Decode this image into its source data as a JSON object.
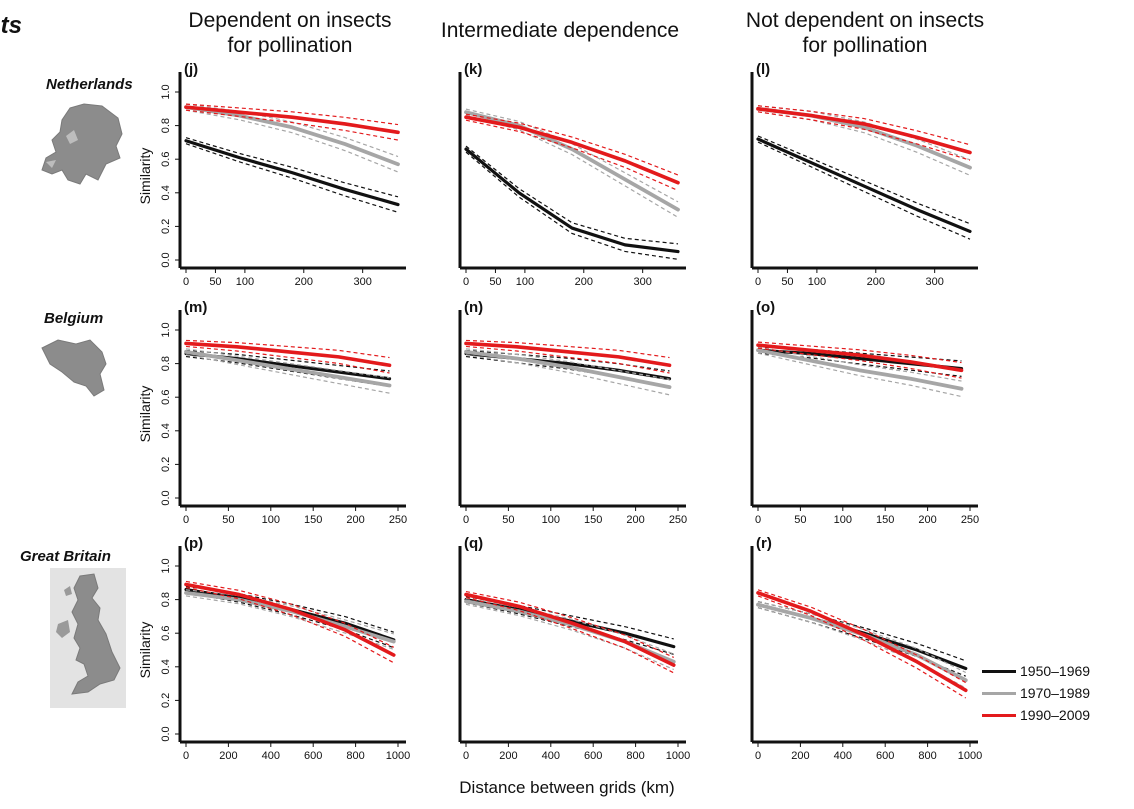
{
  "corner_label": "nts",
  "x_axis_label": "Distance between grids (km)",
  "column_headers": [
    {
      "lines": [
        "Dependent on insects",
        "for pollination"
      ]
    },
    {
      "lines": [
        "Intermediate dependence"
      ]
    },
    {
      "lines": [
        "Not dependent on insects",
        "for pollination"
      ]
    }
  ],
  "rows": [
    {
      "country": "Netherlands"
    },
    {
      "country": "Belgium"
    },
    {
      "country": "Great Britain"
    }
  ],
  "legend": [
    {
      "label": "1950–1969",
      "color": "#111111"
    },
    {
      "label": "1970–1989",
      "color": "#a6a6a6"
    },
    {
      "label": "1990–2009",
      "color": "#e31a1c"
    }
  ],
  "chart_data": [
    {
      "type": "line",
      "panel": "(j)",
      "ylabel": "Similarity",
      "xlim": [
        0,
        360
      ],
      "ylim": [
        0,
        1
      ],
      "xticks": [
        "0",
        "50",
        "100",
        "200",
        "300"
      ],
      "yticks": [
        "0.0",
        "0.2",
        "0.4",
        "0.6",
        "0.8",
        "1.0"
      ],
      "series": [
        {
          "name": "1950–1969",
          "x": [
            0,
            90,
            180,
            270,
            360
          ],
          "values": [
            0.71,
            0.61,
            0.52,
            0.42,
            0.33
          ]
        },
        {
          "name": "1970–1989",
          "x": [
            0,
            90,
            180,
            270,
            360
          ],
          "values": [
            0.91,
            0.86,
            0.79,
            0.69,
            0.57
          ]
        },
        {
          "name": "1990–2009",
          "x": [
            0,
            90,
            180,
            270,
            360
          ],
          "values": [
            0.91,
            0.88,
            0.85,
            0.81,
            0.76
          ]
        }
      ]
    },
    {
      "type": "line",
      "panel": "(k)",
      "ylabel": "",
      "xlim": [
        0,
        360
      ],
      "ylim": [
        0,
        1
      ],
      "xticks": [
        "0",
        "50",
        "100",
        "200",
        "300"
      ],
      "yticks": [],
      "series": [
        {
          "name": "1950–1969",
          "x": [
            0,
            90,
            180,
            270,
            360
          ],
          "values": [
            0.66,
            0.4,
            0.19,
            0.09,
            0.05
          ]
        },
        {
          "name": "1970–1989",
          "x": [
            0,
            90,
            180,
            270,
            360
          ],
          "values": [
            0.88,
            0.8,
            0.66,
            0.48,
            0.3
          ]
        },
        {
          "name": "1990–2009",
          "x": [
            0,
            90,
            180,
            270,
            360
          ],
          "values": [
            0.85,
            0.79,
            0.7,
            0.59,
            0.46
          ]
        }
      ]
    },
    {
      "type": "line",
      "panel": "(l)",
      "ylabel": "",
      "xlim": [
        0,
        360
      ],
      "ylim": [
        0,
        1
      ],
      "xticks": [
        "0",
        "50",
        "100",
        "200",
        "300"
      ],
      "yticks": [],
      "series": [
        {
          "name": "1950–1969",
          "x": [
            0,
            90,
            180,
            270,
            360
          ],
          "values": [
            0.72,
            0.58,
            0.44,
            0.3,
            0.17
          ]
        },
        {
          "name": "1970–1989",
          "x": [
            0,
            90,
            180,
            270,
            360
          ],
          "values": [
            0.9,
            0.86,
            0.79,
            0.68,
            0.55
          ]
        },
        {
          "name": "1990–2009",
          "x": [
            0,
            90,
            180,
            270,
            360
          ],
          "values": [
            0.9,
            0.86,
            0.81,
            0.73,
            0.64
          ]
        }
      ]
    },
    {
      "type": "line",
      "panel": "(m)",
      "ylabel": "Similarity",
      "xlim": [
        0,
        250
      ],
      "ylim": [
        0,
        1
      ],
      "xticks": [
        "0",
        "50",
        "100",
        "150",
        "200",
        "250"
      ],
      "yticks": [
        "0.0",
        "0.2",
        "0.4",
        "0.6",
        "0.8",
        "1.0"
      ],
      "series": [
        {
          "name": "1950–1969",
          "x": [
            0,
            60,
            120,
            180,
            240
          ],
          "values": [
            0.86,
            0.83,
            0.79,
            0.75,
            0.71
          ]
        },
        {
          "name": "1970–1989",
          "x": [
            0,
            60,
            120,
            180,
            240
          ],
          "values": [
            0.87,
            0.82,
            0.77,
            0.72,
            0.67
          ]
        },
        {
          "name": "1990–2009",
          "x": [
            0,
            60,
            120,
            180,
            240
          ],
          "values": [
            0.92,
            0.9,
            0.87,
            0.84,
            0.79
          ]
        }
      ]
    },
    {
      "type": "line",
      "panel": "(n)",
      "ylabel": "",
      "xlim": [
        0,
        250
      ],
      "ylim": [
        0,
        1
      ],
      "xticks": [
        "0",
        "50",
        "100",
        "150",
        "200",
        "250"
      ],
      "yticks": [],
      "series": [
        {
          "name": "1950–1969",
          "x": [
            0,
            60,
            120,
            180,
            240
          ],
          "values": [
            0.86,
            0.83,
            0.8,
            0.76,
            0.71
          ]
        },
        {
          "name": "1970–1989",
          "x": [
            0,
            60,
            120,
            180,
            240
          ],
          "values": [
            0.87,
            0.83,
            0.78,
            0.72,
            0.66
          ]
        },
        {
          "name": "1990–2009",
          "x": [
            0,
            60,
            120,
            180,
            240
          ],
          "values": [
            0.92,
            0.9,
            0.87,
            0.84,
            0.79
          ]
        }
      ]
    },
    {
      "type": "line",
      "panel": "(o)",
      "ylabel": "",
      "xlim": [
        0,
        250
      ],
      "ylim": [
        0,
        1
      ],
      "xticks": [
        "0",
        "50",
        "100",
        "150",
        "200",
        "250"
      ],
      "yticks": [],
      "series": [
        {
          "name": "1950–1969",
          "x": [
            0,
            60,
            120,
            180,
            240
          ],
          "values": [
            0.88,
            0.86,
            0.83,
            0.8,
            0.77
          ]
        },
        {
          "name": "1970–1989",
          "x": [
            0,
            60,
            120,
            180,
            240
          ],
          "values": [
            0.88,
            0.82,
            0.76,
            0.71,
            0.65
          ]
        },
        {
          "name": "1990–2009",
          "x": [
            0,
            60,
            120,
            180,
            240
          ],
          "values": [
            0.91,
            0.88,
            0.85,
            0.81,
            0.76
          ]
        }
      ]
    },
    {
      "type": "line",
      "panel": "(p)",
      "ylabel": "Similarity",
      "xlim": [
        0,
        1000
      ],
      "ylim": [
        0,
        1
      ],
      "xticks": [
        "0",
        "200",
        "400",
        "600",
        "800",
        "1000"
      ],
      "yticks": [
        "0.0",
        "0.2",
        "0.4",
        "0.6",
        "0.8",
        "1.0"
      ],
      "series": [
        {
          "name": "1950–1969",
          "x": [
            0,
            250,
            500,
            750,
            980
          ],
          "values": [
            0.86,
            0.81,
            0.74,
            0.66,
            0.56
          ]
        },
        {
          "name": "1970–1989",
          "x": [
            0,
            250,
            500,
            750,
            980
          ],
          "values": [
            0.84,
            0.8,
            0.73,
            0.64,
            0.55
          ]
        },
        {
          "name": "1990–2009",
          "x": [
            0,
            250,
            500,
            750,
            980
          ],
          "values": [
            0.89,
            0.83,
            0.74,
            0.62,
            0.47
          ]
        }
      ]
    },
    {
      "type": "line",
      "panel": "(q)",
      "ylabel": "",
      "xlim": [
        0,
        1000
      ],
      "ylim": [
        0,
        1
      ],
      "xticks": [
        "0",
        "200",
        "400",
        "600",
        "800",
        "1000"
      ],
      "yticks": [],
      "series": [
        {
          "name": "1950–1969",
          "x": [
            0,
            250,
            500,
            750,
            980
          ],
          "values": [
            0.8,
            0.74,
            0.67,
            0.6,
            0.52
          ]
        },
        {
          "name": "1970–1989",
          "x": [
            0,
            250,
            500,
            750,
            980
          ],
          "values": [
            0.79,
            0.73,
            0.65,
            0.55,
            0.43
          ]
        },
        {
          "name": "1990–2009",
          "x": [
            0,
            250,
            500,
            750,
            980
          ],
          "values": [
            0.83,
            0.76,
            0.66,
            0.55,
            0.41
          ]
        }
      ]
    },
    {
      "type": "line",
      "panel": "(r)",
      "ylabel": "",
      "xlim": [
        0,
        1000
      ],
      "ylim": [
        0,
        1
      ],
      "xticks": [
        "0",
        "200",
        "400",
        "600",
        "800",
        "1000"
      ],
      "yticks": [],
      "series": [
        {
          "name": "1950–1969",
          "x": [
            0,
            250,
            500,
            750,
            980
          ],
          "values": [
            0.77,
            0.69,
            0.6,
            0.5,
            0.39
          ]
        },
        {
          "name": "1970–1989",
          "x": [
            0,
            250,
            500,
            750,
            980
          ],
          "values": [
            0.77,
            0.69,
            0.59,
            0.47,
            0.32
          ]
        },
        {
          "name": "1990–2009",
          "x": [
            0,
            250,
            500,
            750,
            980
          ],
          "values": [
            0.84,
            0.73,
            0.59,
            0.43,
            0.26
          ]
        }
      ]
    }
  ]
}
